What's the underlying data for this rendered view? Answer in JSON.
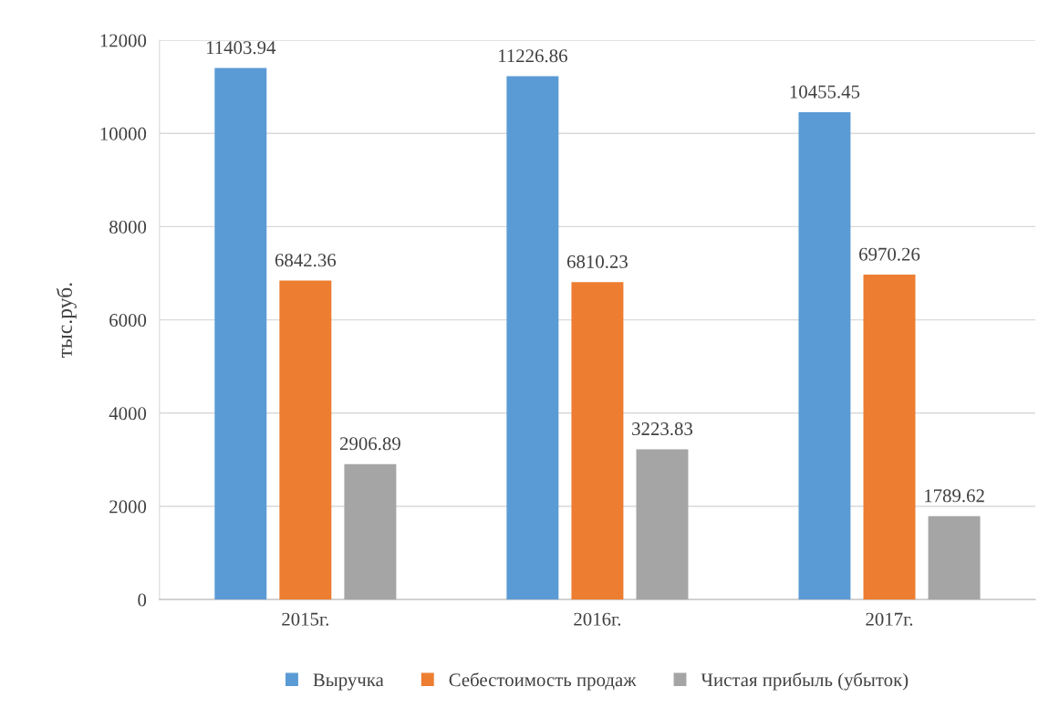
{
  "chart_data": {
    "type": "bar",
    "ylabel": "тыс.руб.",
    "categories": [
      "2015г.",
      "2016г.",
      "2017г."
    ],
    "series": [
      {
        "name": "Выручка",
        "color": "#5b9bd5",
        "values": [
          11403.94,
          11226.86,
          10455.45
        ]
      },
      {
        "name": "Себестоимость продаж",
        "color": "#ed7d31",
        "values": [
          6842.36,
          6810.23,
          6970.26
        ]
      },
      {
        "name": "Чистая прибыль (убыток)",
        "color": "#a5a5a5",
        "values": [
          2906.89,
          3223.83,
          1789.62
        ]
      }
    ],
    "ylim": [
      0,
      12000
    ],
    "yticks": [
      0,
      2000,
      4000,
      6000,
      8000,
      10000,
      12000
    ],
    "grid": "y",
    "legend": "bottom",
    "data_labels": true
  }
}
